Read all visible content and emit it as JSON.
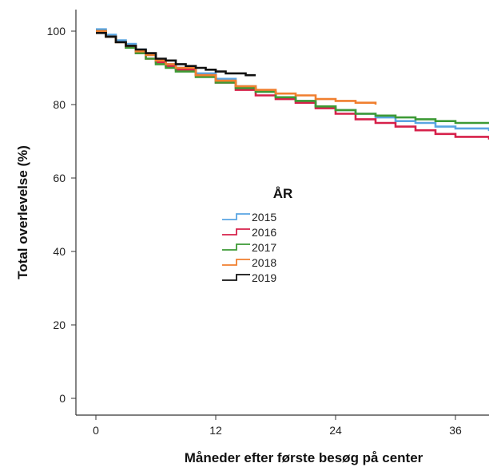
{
  "chart_data": {
    "type": "line",
    "title": "",
    "xlabel": "Måneder efter første besøg på center",
    "ylabel": "Total overlevelse (%)",
    "xlim": [
      -2,
      40
    ],
    "ylim": [
      -5,
      106
    ],
    "x_ticks": [
      0,
      12,
      24,
      36
    ],
    "x_tick_labels": [
      "0",
      "12",
      "24",
      "36"
    ],
    "y_ticks": [
      0,
      20,
      40,
      60,
      80,
      100
    ],
    "y_tick_labels": [
      "0",
      "20",
      "40",
      "60",
      "80",
      "100"
    ],
    "grid": false,
    "legend": {
      "title": "ÅR",
      "placement": "center-left"
    },
    "series": [
      {
        "name": "2015",
        "color": "#5aa5e2",
        "points": [
          [
            0,
            100.5
          ],
          [
            1,
            99
          ],
          [
            2,
            97.5
          ],
          [
            3,
            96.5
          ],
          [
            4,
            95
          ],
          [
            5,
            93.5
          ],
          [
            6,
            92
          ],
          [
            7,
            91
          ],
          [
            8,
            90
          ],
          [
            10,
            88.5
          ],
          [
            12,
            87
          ],
          [
            14,
            85
          ],
          [
            16,
            83.5
          ],
          [
            18,
            82
          ],
          [
            20,
            81
          ],
          [
            22,
            79.5
          ],
          [
            24,
            78.5
          ],
          [
            26,
            77.5
          ],
          [
            28,
            76.5
          ],
          [
            30,
            75.5
          ],
          [
            32,
            75
          ],
          [
            34,
            74
          ],
          [
            36,
            73.5
          ],
          [
            40,
            72.8
          ]
        ]
      },
      {
        "name": "2016",
        "color": "#d6204a",
        "points": [
          [
            0,
            100
          ],
          [
            1,
            98.5
          ],
          [
            2,
            97
          ],
          [
            3,
            95.5
          ],
          [
            4,
            94
          ],
          [
            5,
            92.5
          ],
          [
            6,
            91.5
          ],
          [
            7,
            90.5
          ],
          [
            8,
            89.5
          ],
          [
            10,
            88
          ],
          [
            12,
            86
          ],
          [
            14,
            84
          ],
          [
            16,
            82.5
          ],
          [
            18,
            81.5
          ],
          [
            20,
            80.5
          ],
          [
            22,
            79
          ],
          [
            24,
            77.5
          ],
          [
            26,
            76
          ],
          [
            28,
            75
          ],
          [
            30,
            74
          ],
          [
            32,
            73
          ],
          [
            34,
            72
          ],
          [
            36,
            71.2
          ],
          [
            40,
            70.5
          ]
        ]
      },
      {
        "name": "2017",
        "color": "#3d9a35",
        "points": [
          [
            0,
            100
          ],
          [
            1,
            98.5
          ],
          [
            2,
            97
          ],
          [
            3,
            95.5
          ],
          [
            4,
            94
          ],
          [
            5,
            92.5
          ],
          [
            6,
            91
          ],
          [
            7,
            90
          ],
          [
            8,
            89
          ],
          [
            10,
            87.5
          ],
          [
            12,
            86
          ],
          [
            14,
            84.5
          ],
          [
            16,
            83.5
          ],
          [
            18,
            82
          ],
          [
            20,
            81
          ],
          [
            22,
            79.5
          ],
          [
            24,
            78.5
          ],
          [
            26,
            77.5
          ],
          [
            28,
            77
          ],
          [
            30,
            76.5
          ],
          [
            32,
            76
          ],
          [
            34,
            75.5
          ],
          [
            36,
            75
          ],
          [
            40,
            74.8
          ]
        ]
      },
      {
        "name": "2018",
        "color": "#f07f2f",
        "points": [
          [
            0,
            100
          ],
          [
            1,
            98.5
          ],
          [
            2,
            97
          ],
          [
            3,
            96
          ],
          [
            4,
            94.5
          ],
          [
            5,
            93.5
          ],
          [
            6,
            92
          ],
          [
            7,
            91
          ],
          [
            8,
            90
          ],
          [
            10,
            88
          ],
          [
            12,
            86.5
          ],
          [
            14,
            85
          ],
          [
            16,
            84
          ],
          [
            18,
            83
          ],
          [
            20,
            82.5
          ],
          [
            22,
            81.5
          ],
          [
            24,
            81
          ],
          [
            26,
            80.5
          ],
          [
            28,
            80
          ]
        ]
      },
      {
        "name": "2019",
        "color": "#111111",
        "points": [
          [
            0,
            99.5
          ],
          [
            1,
            98.5
          ],
          [
            2,
            97
          ],
          [
            3,
            96
          ],
          [
            4,
            95
          ],
          [
            5,
            94
          ],
          [
            6,
            92.5
          ],
          [
            7,
            92
          ],
          [
            8,
            91
          ],
          [
            9,
            90.5
          ],
          [
            10,
            90
          ],
          [
            11,
            89.5
          ],
          [
            12,
            89
          ],
          [
            13,
            88.5
          ],
          [
            14,
            88.5
          ],
          [
            15,
            88
          ],
          [
            16,
            88
          ]
        ]
      }
    ]
  }
}
